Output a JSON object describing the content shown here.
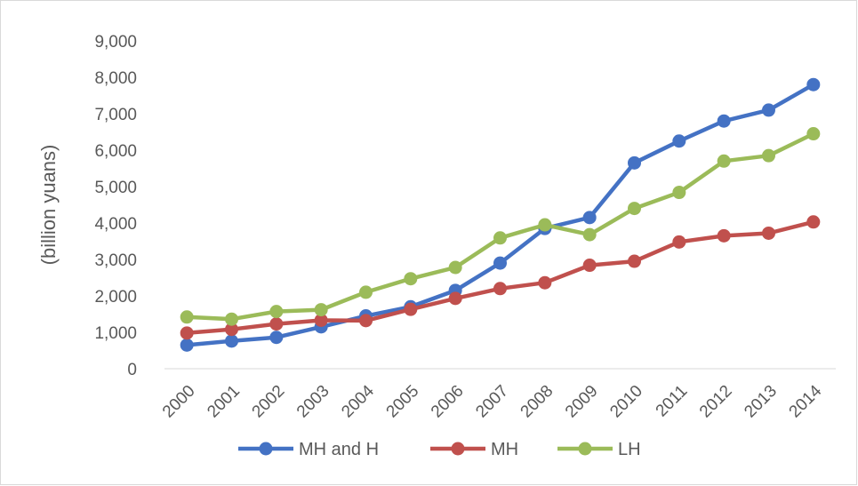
{
  "chart_data": {
    "type": "line",
    "title": "",
    "xlabel": "",
    "ylabel": "(billion yuans)",
    "ylim": [
      0,
      9000
    ],
    "yticks": [
      0,
      1000,
      2000,
      3000,
      4000,
      5000,
      6000,
      7000,
      8000,
      9000
    ],
    "ytick_labels": [
      "0",
      "1,000",
      "2,000",
      "3,000",
      "4,000",
      "5,000",
      "6,000",
      "7,000",
      "8,000",
      "9,000"
    ],
    "categories": [
      "2000",
      "2001",
      "2002",
      "2003",
      "2004",
      "2005",
      "2006",
      "2007",
      "2008",
      "2009",
      "2010",
      "2011",
      "2012",
      "2013",
      "2014"
    ],
    "grid": false,
    "legend_position": "bottom",
    "series": [
      {
        "name": "MH and H",
        "color": "#4472C4",
        "values": [
          650,
          760,
          860,
          1150,
          1450,
          1700,
          2150,
          2900,
          3850,
          4150,
          5650,
          6250,
          6800,
          7100,
          7800
        ]
      },
      {
        "name": "MH",
        "color": "#C0504D",
        "values": [
          980,
          1080,
          1230,
          1330,
          1320,
          1630,
          1930,
          2200,
          2360,
          2840,
          2950,
          3480,
          3650,
          3720,
          4030
        ]
      },
      {
        "name": "LH",
        "color": "#9BBB59",
        "values": [
          1420,
          1360,
          1570,
          1620,
          2100,
          2470,
          2780,
          3590,
          3950,
          3680,
          4400,
          4840,
          5700,
          5850,
          6450
        ]
      }
    ]
  }
}
